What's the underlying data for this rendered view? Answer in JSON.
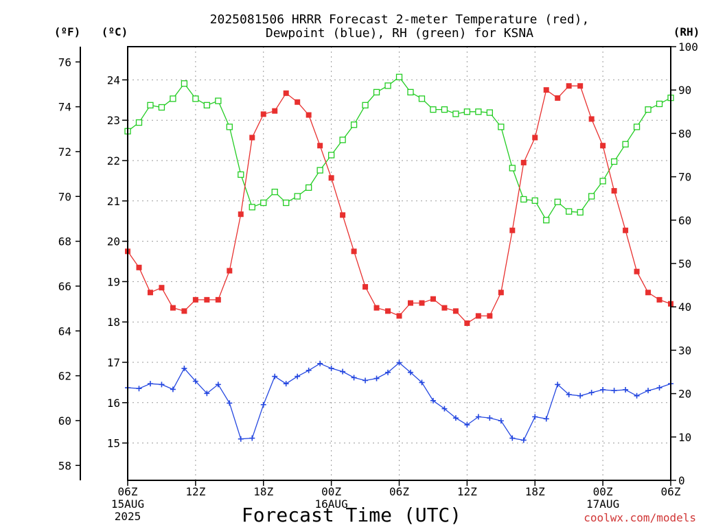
{
  "chart_data": {
    "type": "line",
    "title": [
      "2025081506 HRRR Forecast 2-meter Temperature (red),",
      "Dewpoint (blue), RH (green) for KSNA"
    ],
    "xlabel": "Forecast Time (UTC)",
    "credit": "coolwx.com/models",
    "x": [
      6,
      7,
      8,
      9,
      10,
      11,
      12,
      13,
      14,
      15,
      16,
      17,
      18,
      19,
      20,
      21,
      22,
      23,
      24,
      25,
      26,
      27,
      28,
      29,
      30,
      31,
      32,
      33,
      34,
      35,
      36,
      37,
      38,
      39,
      40,
      41,
      42,
      43,
      44,
      45,
      46,
      47,
      48,
      49,
      50,
      51,
      52,
      53,
      54
    ],
    "xlim": [
      6,
      54
    ],
    "x_ticks": [
      {
        "x": 6,
        "label": "06Z",
        "sub1": "15AUG",
        "sub2": "2025"
      },
      {
        "x": 12,
        "label": "12Z"
      },
      {
        "x": 18,
        "label": "18Z"
      },
      {
        "x": 24,
        "label": "00Z",
        "sub1": "16AUG"
      },
      {
        "x": 30,
        "label": "06Z"
      },
      {
        "x": 36,
        "label": "12Z"
      },
      {
        "x": 42,
        "label": "18Z"
      },
      {
        "x": 48,
        "label": "00Z",
        "sub1": "17AUG"
      },
      {
        "x": 54,
        "label": "06Z"
      }
    ],
    "y_celsius": {
      "unit": "(ºC)",
      "ticks": [
        15,
        16,
        17,
        18,
        19,
        20,
        21,
        22,
        23,
        24
      ]
    },
    "y_fahrenheit": {
      "unit": "(ºF)",
      "ticks": [
        58,
        60,
        62,
        64,
        66,
        68,
        70,
        72,
        74,
        76
      ]
    },
    "y_rh": {
      "unit": "(RH)",
      "range": [
        0,
        100
      ],
      "ticks": [
        0,
        10,
        20,
        30,
        40,
        50,
        60,
        70,
        80,
        90,
        100
      ]
    },
    "series": [
      {
        "name": "Temperature",
        "axis": "celsius",
        "color": "#e8302f",
        "marker": "filled-square",
        "values": [
          19.75,
          19.35,
          18.73,
          18.85,
          18.35,
          18.27,
          18.55,
          18.55,
          18.55,
          19.27,
          20.67,
          22.57,
          23.15,
          23.23,
          23.67,
          23.45,
          23.13,
          22.37,
          21.57,
          20.65,
          19.75,
          18.87,
          18.35,
          18.27,
          18.15,
          18.47,
          18.47,
          18.57,
          18.35,
          18.27,
          17.97,
          18.15,
          18.15,
          18.73,
          20.27,
          21.95,
          22.57,
          23.75,
          23.55,
          23.85,
          23.85,
          23.03,
          22.37,
          21.25,
          20.27,
          19.25,
          18.73,
          18.55,
          18.45
        ]
      },
      {
        "name": "Dewpoint",
        "axis": "celsius",
        "color": "#2447e0",
        "marker": "plus",
        "values": [
          16.37,
          16.35,
          16.47,
          16.45,
          16.33,
          16.85,
          16.53,
          16.23,
          16.45,
          15.99,
          15.1,
          15.12,
          15.95,
          16.65,
          16.47,
          16.65,
          16.8,
          16.97,
          16.85,
          16.77,
          16.62,
          16.55,
          16.6,
          16.75,
          16.99,
          16.75,
          16.5,
          16.05,
          15.85,
          15.62,
          15.45,
          15.65,
          15.62,
          15.55,
          15.12,
          15.07,
          15.65,
          15.6,
          16.45,
          16.2,
          16.17,
          16.25,
          16.32,
          16.3,
          16.32,
          16.17,
          16.3,
          16.37,
          16.47
        ]
      },
      {
        "name": "RH",
        "axis": "rh",
        "color": "#22cc22",
        "marker": "open-square",
        "values": [
          80.5,
          82.5,
          86.5,
          86,
          88,
          91.5,
          88,
          86.5,
          87.5,
          81.5,
          70.5,
          63,
          64,
          66.5,
          64,
          65.5,
          67.5,
          71.5,
          75,
          78.5,
          82,
          86.5,
          89.5,
          91,
          93,
          89.5,
          88,
          85.5,
          85.5,
          84.5,
          85,
          85,
          84.8,
          81.5,
          72,
          64.8,
          64.5,
          60,
          64.2,
          62,
          61.8,
          65.5,
          69,
          73.5,
          77.5,
          81.5,
          85.5,
          86.8,
          88.2
        ]
      }
    ]
  }
}
